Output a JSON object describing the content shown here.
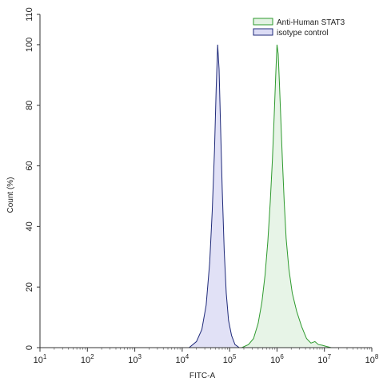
{
  "chart_data": {
    "type": "area",
    "xlabel": "FITC-A",
    "ylabel": "Count (%)",
    "x_scale": "log10",
    "xlim": [
      10,
      100000000
    ],
    "ylim": [
      0,
      110
    ],
    "x_ticks": [
      {
        "value": 10,
        "base": "10",
        "exp": "1"
      },
      {
        "value": 100,
        "base": "10",
        "exp": "2"
      },
      {
        "value": 1000,
        "base": "10",
        "exp": "3"
      },
      {
        "value": 10000,
        "base": "10",
        "exp": "4"
      },
      {
        "value": 100000,
        "base": "10",
        "exp": "5"
      },
      {
        "value": 1000000,
        "base": "10",
        "exp": "6"
      },
      {
        "value": 10000000,
        "base": "10",
        "exp": "7"
      },
      {
        "value": 100000000,
        "base": "10",
        "exp": "8"
      }
    ],
    "y_ticks": [
      "0",
      "20",
      "40",
      "60",
      "80",
      "100",
      "110"
    ],
    "grid": false,
    "legend": {
      "position": "top-right"
    },
    "series": [
      {
        "name": "Anti-Human STAT3",
        "stroke": "#2e9a2e",
        "fill": "#e3f2e3",
        "x": [
          180000,
          250000,
          320000,
          400000,
          480000,
          560000,
          640000,
          720000,
          800000,
          870000,
          940000,
          1000000,
          1060000,
          1120000,
          1200000,
          1300000,
          1420000,
          1560000,
          1780000,
          2100000,
          2600000,
          3300000,
          4200000,
          5200000,
          6300000,
          7500000,
          9000000,
          11000000,
          14000000
        ],
        "y": [
          0,
          1,
          3,
          8,
          15,
          24,
          35,
          48,
          62,
          76,
          90,
          100,
          97,
          88,
          76,
          62,
          48,
          36,
          26,
          18,
          12,
          7,
          3,
          1.5,
          2,
          1,
          0.8,
          0.4,
          0
        ]
      },
      {
        "name": "isotype control",
        "stroke": "#1f2a7a",
        "fill": "#dcdcf5",
        "x": [
          14000,
          20000,
          26000,
          32000,
          38000,
          43000,
          48000,
          52000,
          56000,
          60000,
          64000,
          70000,
          77000,
          85000,
          95000,
          110000,
          130000,
          160000
        ],
        "y": [
          0,
          2,
          6,
          14,
          28,
          45,
          65,
          85,
          100,
          92,
          75,
          52,
          32,
          18,
          9,
          4,
          1,
          0
        ]
      }
    ]
  }
}
